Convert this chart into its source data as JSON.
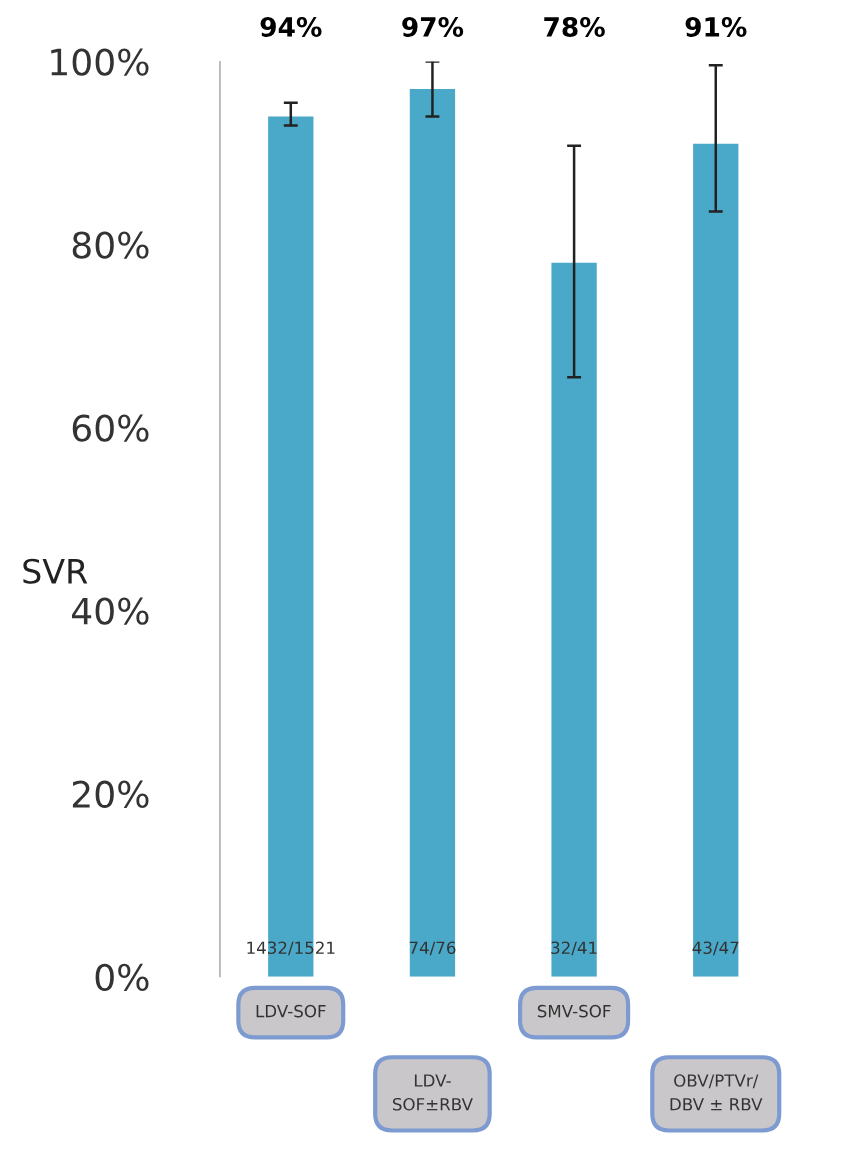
{
  "chart_data": {
    "type": "bar",
    "ylabel": "SVR",
    "categories": [
      "LDV-SOF",
      "LDV-\nSOF±RBV",
      "SMV-SOF",
      "OBV/PTVr/\nDBV ± RBV"
    ],
    "values": [
      94,
      97,
      78,
      91
    ],
    "color": "#4aa9c9",
    "errors": [
      [
        93,
        95.5
      ],
      [
        94,
        100
      ],
      [
        65.5,
        90.8
      ],
      [
        83.6,
        99.6
      ]
    ],
    "ylim": [
      0,
      100
    ],
    "yticks": [
      {
        "value": 0,
        "label": "0%"
      },
      {
        "value": 20,
        "label": "20%"
      },
      {
        "value": 40,
        "label": "40%"
      },
      {
        "value": 60,
        "label": "60%"
      },
      {
        "value": 80,
        "label": "80%"
      },
      {
        "value": 100,
        "label": "100%"
      }
    ],
    "grid": false,
    "annotations": [
      "94%",
      "97%",
      "78%",
      "91%",
      "1432/1521",
      "74/76",
      "32/41",
      "43/47"
    ]
  }
}
